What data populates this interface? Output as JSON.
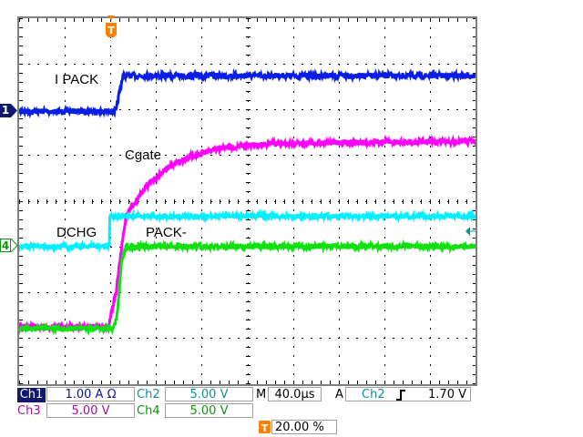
{
  "chart_data": {
    "type": "line",
    "xlabel": "",
    "ylabel": "",
    "x_unit": "µs",
    "y_unit": "div",
    "xlim": [
      -80,
      320
    ],
    "ylim": [
      -4,
      4
    ],
    "grid": true,
    "series": [
      {
        "name": "I PACK",
        "channel": "Ch1",
        "color": "#0a1ee6",
        "x": [
          -80,
          5,
          8,
          11,
          320
        ],
        "y": [
          1.96,
          1.96,
          2.4,
          2.74,
          2.74
        ]
      },
      {
        "name": "Cgate",
        "channel": "Ch3",
        "color": "#ff00ff",
        "x": [
          -80,
          -2,
          5,
          10,
          14,
          30,
          50,
          70,
          100,
          140,
          200,
          320
        ],
        "y": [
          -2.76,
          -2.76,
          -2.0,
          -1.0,
          -0.3,
          0.28,
          0.72,
          0.98,
          1.16,
          1.25,
          1.28,
          1.3
        ]
      },
      {
        "name": "DCHG",
        "channel": "Ch2",
        "color": "#00f0ff",
        "x": [
          -80,
          -1,
          -0.5,
          320
        ],
        "y": [
          -1.0,
          -1.0,
          -0.34,
          -0.34
        ]
      },
      {
        "name": "PACK-",
        "channel": "Ch4",
        "color": "#10e010",
        "x": [
          -80,
          3,
          6,
          10,
          14,
          320
        ],
        "y": [
          -2.8,
          -2.8,
          -2.5,
          -1.3,
          -1.0,
          -1.0
        ]
      }
    ]
  },
  "markers": {
    "ch1": "1",
    "ch4": "4",
    "trigger": "T"
  },
  "status": {
    "ch1_label": "Ch1",
    "ch1_scale": "1.00 A Ω",
    "ch2_label": "Ch2",
    "ch2_scale": "5.00 V",
    "ch3_label": "Ch3",
    "ch3_scale": "5.00 V",
    "ch4_label": "Ch4",
    "ch4_scale": "5.00 V",
    "timebase_label": "M",
    "timebase": "40.0µs",
    "trigger_label": "A",
    "trigger_source": "Ch2",
    "trigger_slope": "rising-edge-icon",
    "trigger_level": "1.70 V",
    "trigger_position": "20.00 %"
  },
  "colors": {
    "ch1": "#0a1ee6",
    "ch1_text": "#1010a0",
    "ch2": "#00f0ff",
    "ch2_text": "#109090",
    "ch3": "#ff00ff",
    "ch3_text": "#a010a0",
    "ch4": "#10e010",
    "ch4_text": "#109010",
    "trigger": "#ff8000"
  }
}
